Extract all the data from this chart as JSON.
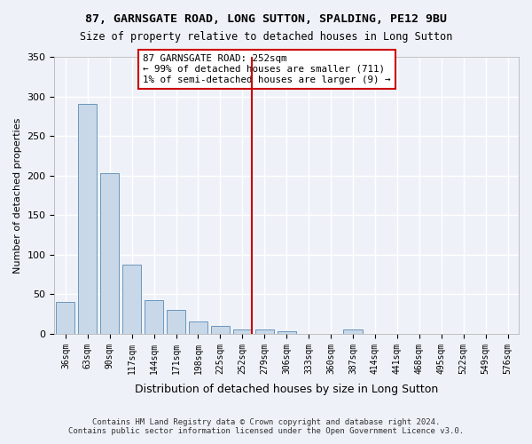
{
  "title1": "87, GARNSGATE ROAD, LONG SUTTON, SPALDING, PE12 9BU",
  "title2": "Size of property relative to detached houses in Long Sutton",
  "xlabel": "Distribution of detached houses by size in Long Sutton",
  "ylabel": "Number of detached properties",
  "footer1": "Contains HM Land Registry data © Crown copyright and database right 2024.",
  "footer2": "Contains public sector information licensed under the Open Government Licence v3.0.",
  "annotation_title": "87 GARNSGATE ROAD: 252sqm",
  "annotation_line1": "← 99% of detached houses are smaller (711)",
  "annotation_line2": "1% of semi-detached houses are larger (9) →",
  "property_value": 252,
  "bar_color": "#c8d8e8",
  "bar_edge_color": "#5a8ab5",
  "vline_color": "#cc0000",
  "annotation_box_edge": "#cc0000",
  "categories": [
    "36sqm",
    "63sqm",
    "90sqm",
    "117sqm",
    "144sqm",
    "171sqm",
    "198sqm",
    "225sqm",
    "252sqm",
    "279sqm",
    "306sqm",
    "333sqm",
    "360sqm",
    "387sqm",
    "414sqm",
    "441sqm",
    "468sqm",
    "495sqm",
    "522sqm",
    "549sqm",
    "576sqm"
  ],
  "values": [
    40,
    290,
    203,
    87,
    42,
    30,
    16,
    10,
    5,
    5,
    3,
    0,
    0,
    5,
    0,
    0,
    0,
    0,
    0,
    0,
    0
  ],
  "ylim": [
    0,
    350
  ],
  "yticks": [
    0,
    50,
    100,
    150,
    200,
    250,
    300,
    350
  ],
  "bg_color": "#eef2f8",
  "plot_bg_color": "#eef2f8",
  "grid_color": "#ffffff",
  "vline_x_index": 8
}
